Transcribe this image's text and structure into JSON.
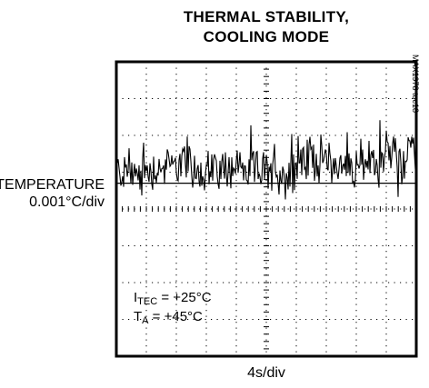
{
  "chart_data": {
    "type": "line",
    "title_line1": "THERMAL STABILITY,",
    "title_line2": "COOLING MODE",
    "ylabel_line1": "TEMPERATURE",
    "ylabel_line2": "0.001°C/div",
    "xlabel": "4s/div",
    "part_number": "MAX1978 toc18",
    "annotations": {
      "line1_main": "I",
      "line1_sub": "TEC",
      "line1_rest": " = +25°C",
      "line2_main": "T",
      "line2_sub": "A",
      "line2_rest": " = +45°C"
    },
    "x_divisions": 10,
    "y_divisions": 8,
    "xlim_div": [
      0,
      10
    ],
    "ylim_div": [
      -4,
      4
    ],
    "grid": true,
    "reference_level_div": 0.7,
    "series": [
      {
        "x_div": [
          0,
          0.5,
          1,
          1.5,
          2,
          2.5,
          3,
          3.5,
          4,
          4.5,
          5,
          5.5,
          6,
          6.5,
          7,
          7.5,
          8,
          8.5,
          9,
          9.5,
          10
        ],
        "y_div": [
          1.0,
          1.0,
          1.05,
          1.1,
          1.3,
          1.1,
          1.05,
          1.1,
          1.15,
          1.1,
          1.0,
          0.95,
          1.2,
          1.4,
          1.35,
          1.2,
          1.25,
          1.3,
          1.45,
          1.4,
          1.4
        ]
      }
    ]
  }
}
